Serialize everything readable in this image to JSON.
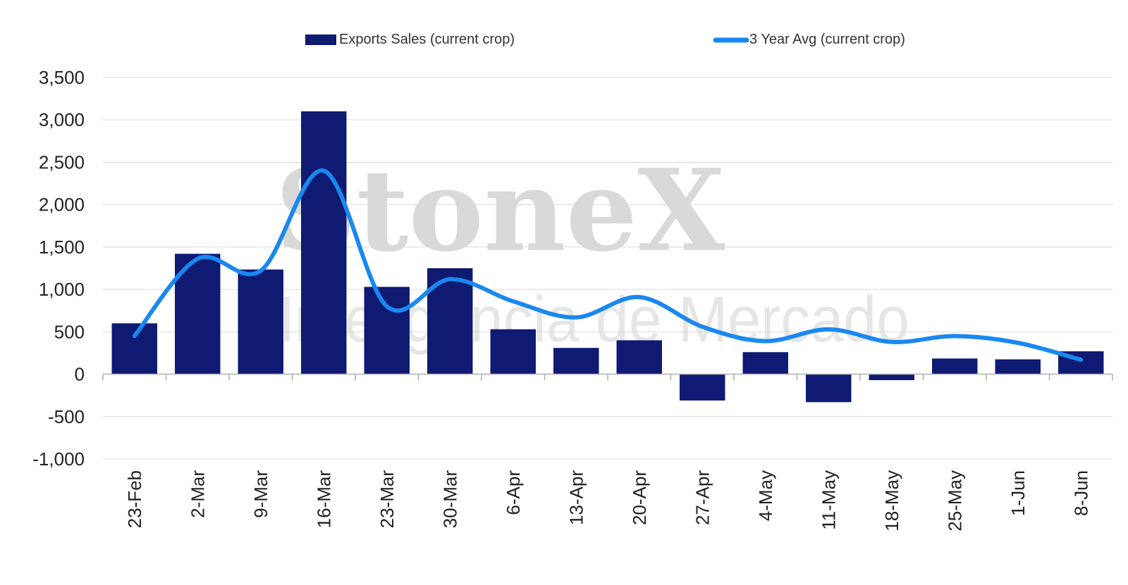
{
  "watermark": {
    "brand": "StoneX",
    "registered": "®",
    "tagline": "Inteligência de Mercado"
  },
  "chart_data": {
    "type": "bar",
    "title": "",
    "xlabel": "",
    "ylabel": "",
    "ylim": [
      -1000,
      3500
    ],
    "yticks": [
      -1000,
      -500,
      0,
      500,
      1000,
      1500,
      2000,
      2500,
      3000,
      3500
    ],
    "ytick_labels": [
      "-1,000",
      "-500",
      "0",
      "500",
      "1,000",
      "1,500",
      "2,000",
      "2,500",
      "3,000",
      "3,500"
    ],
    "grid": true,
    "legend_position": "top",
    "categories": [
      "23-Feb",
      "2-Mar",
      "9-Mar",
      "16-Mar",
      "23-Mar",
      "30-Mar",
      "6-Apr",
      "13-Apr",
      "20-Apr",
      "27-Apr",
      "4-May",
      "11-May",
      "18-May",
      "25-May",
      "1-Jun",
      "8-Jun"
    ],
    "series": [
      {
        "name": "Exports Sales (current crop)",
        "kind": "bar",
        "color": "#0f1a73",
        "values": [
          600,
          1420,
          1235,
          3100,
          1030,
          1250,
          530,
          310,
          400,
          -310,
          260,
          -330,
          -70,
          185,
          175,
          270
        ]
      },
      {
        "name": "3 Year Avg (current crop)",
        "kind": "line",
        "color": "#1a88f0",
        "values": [
          450,
          1360,
          1220,
          2400,
          800,
          1120,
          860,
          670,
          910,
          560,
          390,
          530,
          380,
          450,
          370,
          170
        ]
      }
    ]
  }
}
